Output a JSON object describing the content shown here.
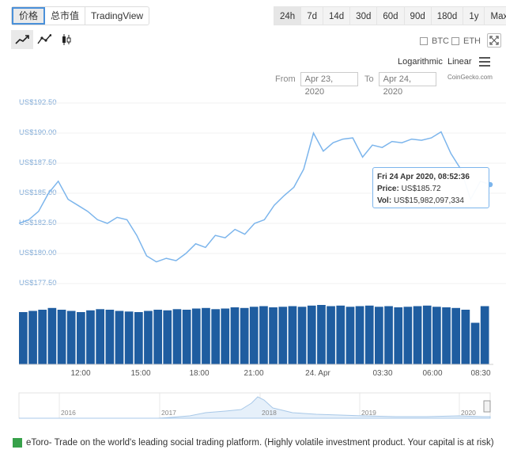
{
  "view_tabs": [
    "价格",
    "总市值",
    "TradingView"
  ],
  "ranges": [
    "24h",
    "7d",
    "14d",
    "30d",
    "60d",
    "90d",
    "180d",
    "1y",
    "Max"
  ],
  "compare": {
    "btc": "BTC",
    "eth": "ETH"
  },
  "scale": {
    "log": "Logarithmic",
    "linear": "Linear"
  },
  "date_range": {
    "from_label": "From",
    "from": "Apr 23, 2020",
    "to_label": "To",
    "to": "Apr 24, 2020"
  },
  "credit": "CoinGecko.com",
  "tooltip": {
    "date": "Fri 24 Apr 2020, 08:52:36",
    "price_label": "Price:",
    "price": "US$185.72",
    "vol_label": "Vol:",
    "vol": "US$15,982,097,334"
  },
  "navigator_years": [
    "2016",
    "2017",
    "2018",
    "2019",
    "2020"
  ],
  "ad_text": "eToro- Trade on the world's leading social trading platform. (Highly volatile investment product. Your capital is at risk)",
  "colors": {
    "accent": "#7cb5ec",
    "bar": "#1f5da0",
    "active_border": "#4a90d9"
  },
  "chart_data": {
    "type": "line",
    "y_ticks": [
      "US$192.50",
      "US$190.00",
      "US$187.50",
      "US$185.00",
      "US$182.50",
      "US$180.00",
      "US$177.50"
    ],
    "x_ticks": [
      "12:00",
      "15:00",
      "18:00",
      "21:00",
      "24. Apr",
      "03:30",
      "06:00",
      "08:30"
    ],
    "ylim": [
      177.5,
      192.5
    ],
    "series": [
      {
        "values": [
          182.5,
          182.8,
          183.5,
          185.0,
          186.0,
          184.5,
          184.0,
          183.5,
          182.8,
          182.5,
          183.0,
          182.8,
          181.5,
          179.8,
          179.3,
          179.6,
          179.4,
          180.0,
          180.8,
          180.5,
          181.5,
          181.3,
          182.0,
          181.6,
          182.5,
          182.8,
          184.0,
          184.8,
          185.5,
          187.0,
          190.0,
          188.5,
          189.2,
          189.5,
          189.6,
          188.0,
          189.0,
          188.8,
          189.3,
          189.2,
          189.5,
          189.4,
          189.6,
          190.1,
          188.3,
          187.0,
          184.5,
          186.0,
          185.72
        ]
      }
    ],
    "volume": [
      88,
      90,
      92,
      95,
      92,
      90,
      88,
      91,
      93,
      92,
      90,
      89,
      88,
      90,
      92,
      91,
      93,
      92,
      94,
      95,
      93,
      94,
      96,
      95,
      97,
      98,
      96,
      97,
      98,
      97,
      99,
      100,
      98,
      99,
      97,
      98,
      99,
      97,
      98,
      96,
      97,
      98,
      99,
      97,
      96,
      95,
      92,
      70,
      98
    ]
  }
}
